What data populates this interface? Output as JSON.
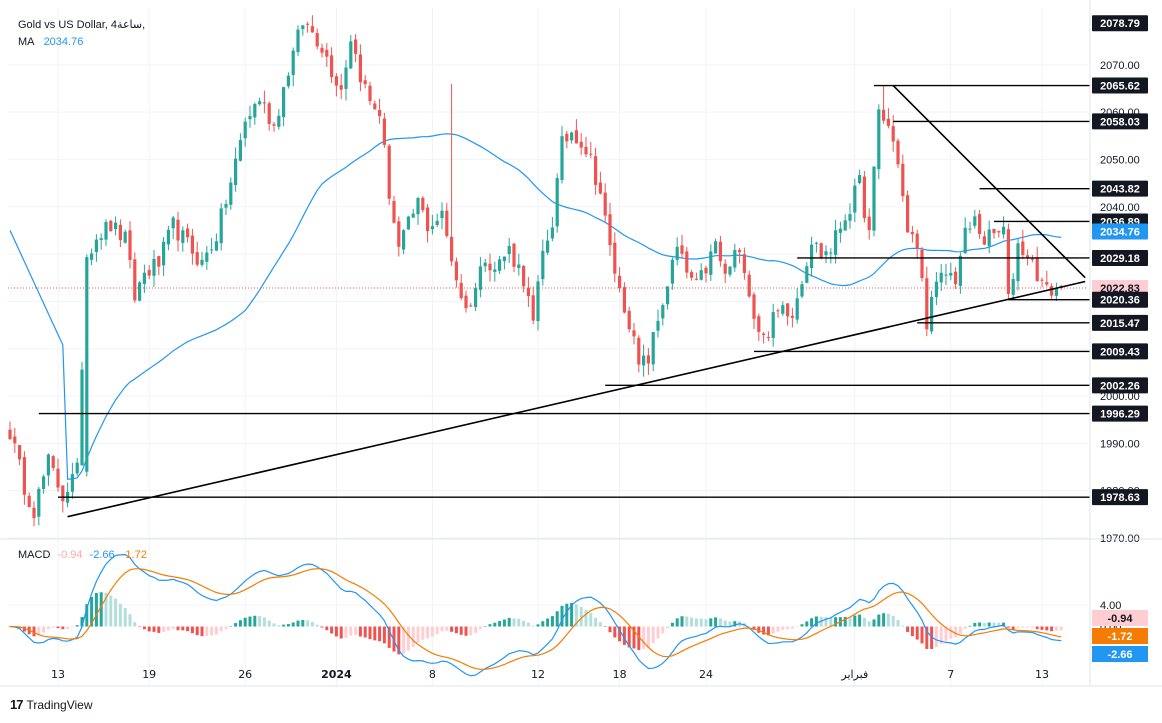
{
  "legend": {
    "title": "Gold vs US Dollar, 4ساعة,",
    "ma_label": "MA",
    "ma_value": "2034.76",
    "macd_label": "MACD",
    "macd_hist": "-0.94",
    "macd_line": "-2.66",
    "macd_signal": "-1.72"
  },
  "brand": {
    "logo": "17",
    "name": "TradingView"
  },
  "colors": {
    "up": "#26a69a",
    "down": "#ef5350",
    "ma": "#2196f3",
    "signal": "#f57c00",
    "text": "#131722"
  },
  "chart_data": {
    "type": "candlestick",
    "price_axis": {
      "min": 1970,
      "max": 2082,
      "ticks": [
        "1970.00",
        "1980.00",
        "1990.00",
        "2000.00",
        "2010.00",
        "2020.00",
        "2030.00",
        "2040.00",
        "2050.00",
        "2060.00",
        "2070.00"
      ]
    },
    "x_ticks": [
      "13",
      "19",
      "26",
      "2024",
      "8",
      "12",
      "18",
      "24",
      "فبراير",
      "7",
      "13"
    ],
    "price_labels": [
      {
        "text": "2078.79",
        "value": 2078.79,
        "style": "dark"
      },
      {
        "text": "2065.62",
        "value": 2065.62,
        "style": "dark"
      },
      {
        "text": "2058.03",
        "value": 2058.03,
        "style": "dark"
      },
      {
        "text": "2043.82",
        "value": 2043.82,
        "style": "dark"
      },
      {
        "text": "2036.89",
        "value": 2036.89,
        "style": "dark"
      },
      {
        "text": "2034.76",
        "value": 2034.76,
        "style": "ma"
      },
      {
        "text": "2029.18",
        "value": 2029.18,
        "style": "dark"
      },
      {
        "text": "2022.83",
        "value": 2022.83,
        "style": "last"
      },
      {
        "text": "2020.36",
        "value": 2020.36,
        "style": "dark"
      },
      {
        "text": "2015.47",
        "value": 2015.47,
        "style": "dark"
      },
      {
        "text": "2009.43",
        "value": 2009.43,
        "style": "dark"
      },
      {
        "text": "2002.26",
        "value": 2002.26,
        "style": "dark"
      },
      {
        "text": "1996.29",
        "value": 1996.29,
        "style": "dark"
      },
      {
        "text": "1978.63",
        "value": 1978.63,
        "style": "dark"
      }
    ],
    "horizontal_levels": [
      {
        "value": 2065.62,
        "start_bar": 180
      },
      {
        "value": 2058.03,
        "start_bar": 184
      },
      {
        "value": 2043.82,
        "start_bar": 202
      },
      {
        "value": 2036.89,
        "start_bar": 205
      },
      {
        "value": 2029.18,
        "start_bar": 164
      },
      {
        "value": 2020.36,
        "start_bar": 208
      },
      {
        "value": 2015.47,
        "start_bar": 189
      },
      {
        "value": 2009.43,
        "start_bar": 155
      },
      {
        "value": 2002.26,
        "start_bar": 124
      },
      {
        "value": 1996.29,
        "start_bar": 6
      },
      {
        "value": 1978.63,
        "start_bar": 10
      }
    ],
    "trendlines": [
      {
        "from_bar": 12,
        "from_value": 1974.5,
        "to_bar": 224,
        "to_value": 2024.2
      },
      {
        "from_bar": 184,
        "from_value": 2065.6,
        "to_bar": 224,
        "to_value": 2025.0
      }
    ],
    "last_price": 2022.83,
    "macd_axis": {
      "min": -11,
      "max": 16,
      "ticks": [
        "4.00",
        "0.00"
      ]
    },
    "macd_values": {
      "histogram": -0.94,
      "signal": -1.72,
      "macd": -2.66
    },
    "total_bars": 220,
    "ma_period": 50,
    "anchors": [
      [
        0,
        1992.5
      ],
      [
        3,
        1981
      ],
      [
        5,
        1976
      ],
      [
        8,
        1986
      ],
      [
        11,
        1979
      ],
      [
        14,
        1984
      ],
      [
        16,
        2030
      ],
      [
        18,
        2034
      ],
      [
        21,
        2036
      ],
      [
        24,
        2033
      ],
      [
        26,
        2021
      ],
      [
        28,
        2026
      ],
      [
        31,
        2028
      ],
      [
        34,
        2036
      ],
      [
        37,
        2032
      ],
      [
        40,
        2028
      ],
      [
        43,
        2034
      ],
      [
        46,
        2045
      ],
      [
        49,
        2058
      ],
      [
        52,
        2063
      ],
      [
        55,
        2057
      ],
      [
        58,
        2069
      ],
      [
        61,
        2079
      ],
      [
        63,
        2077
      ],
      [
        65,
        2074
      ],
      [
        67,
        2069
      ],
      [
        69,
        2065
      ],
      [
        71,
        2076
      ],
      [
        73,
        2068
      ],
      [
        75,
        2062
      ],
      [
        77,
        2060
      ],
      [
        79,
        2043
      ],
      [
        81,
        2031
      ],
      [
        83,
        2036
      ],
      [
        85,
        2041
      ],
      [
        87,
        2036
      ],
      [
        90,
        2038
      ],
      [
        93,
        2025
      ],
      [
        95,
        2018
      ],
      [
        97,
        2023
      ],
      [
        99,
        2030
      ],
      [
        101,
        2027
      ],
      [
        104,
        2031
      ],
      [
        107,
        2025
      ],
      [
        109,
        2015
      ],
      [
        111,
        2030
      ],
      [
        113,
        2037
      ],
      [
        115,
        2053
      ],
      [
        117,
        2056
      ],
      [
        119,
        2054
      ],
      [
        121,
        2050
      ],
      [
        123,
        2043
      ],
      [
        125,
        2031
      ],
      [
        127,
        2022
      ],
      [
        129,
        2016
      ],
      [
        131,
        2006
      ],
      [
        133,
        2008
      ],
      [
        135,
        2016
      ],
      [
        137,
        2024
      ],
      [
        139,
        2031
      ],
      [
        141,
        2026
      ],
      [
        143,
        2023
      ],
      [
        145,
        2027
      ],
      [
        147,
        2032
      ],
      [
        149,
        2025
      ],
      [
        151,
        2030
      ],
      [
        153,
        2028
      ],
      [
        155,
        2017
      ],
      [
        157,
        2012
      ],
      [
        159,
        2016
      ],
      [
        161,
        2019
      ],
      [
        163,
        2018
      ],
      [
        165,
        2025
      ],
      [
        167,
        2033
      ],
      [
        169,
        2030
      ],
      [
        171,
        2031
      ],
      [
        173,
        2036
      ],
      [
        175,
        2040
      ],
      [
        177,
        2045
      ],
      [
        179,
        2034
      ],
      [
        181,
        2060
      ],
      [
        183,
        2057
      ],
      [
        185,
        2050
      ],
      [
        187,
        2034
      ],
      [
        189,
        2032
      ],
      [
        191,
        2016
      ],
      [
        193,
        2023
      ],
      [
        195,
        2026
      ],
      [
        197,
        2025
      ],
      [
        199,
        2034
      ],
      [
        201,
        2037
      ],
      [
        203,
        2033
      ],
      [
        205,
        2034
      ],
      [
        207,
        2035
      ],
      [
        208,
        2020
      ],
      [
        210,
        2032
      ],
      [
        212,
        2030
      ],
      [
        214,
        2026
      ],
      [
        216,
        2022
      ],
      [
        218,
        2023
      ],
      [
        219,
        2022.83
      ]
    ]
  }
}
